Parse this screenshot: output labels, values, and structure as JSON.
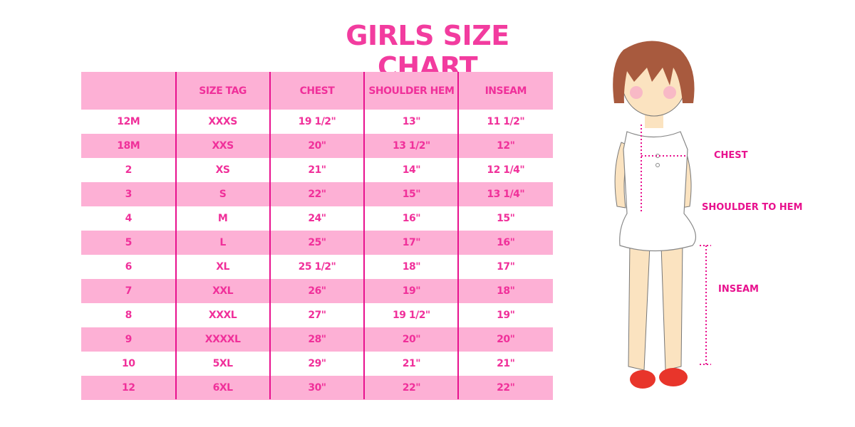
{
  "title": "GIRLS SIZE CHART",
  "table": {
    "headers": [
      "",
      "SIZE TAG",
      "CHEST",
      "SHOULDER HEM",
      "INSEAM"
    ],
    "rows": [
      [
        "12M",
        "XXXS",
        "19 1/2\"",
        "13\"",
        "11 1/2\""
      ],
      [
        "18M",
        "XXS",
        "20\"",
        "13 1/2\"",
        "12\""
      ],
      [
        "2",
        "XS",
        "21\"",
        "14\"",
        "12 1/4\""
      ],
      [
        "3",
        "S",
        "22\"",
        "15\"",
        "13 1/4\""
      ],
      [
        "4",
        "M",
        "24\"",
        "16\"",
        "15\""
      ],
      [
        "5",
        "L",
        "25\"",
        "17\"",
        "16\""
      ],
      [
        "6",
        "XL",
        "25 1/2\"",
        "18\"",
        "17\""
      ],
      [
        "7",
        "XXL",
        "26\"",
        "19\"",
        "18\""
      ],
      [
        "8",
        "XXXL",
        "27\"",
        "19 1/2\"",
        "19\""
      ],
      [
        "9",
        "XXXXL",
        "28\"",
        "20\"",
        "20\""
      ],
      [
        "10",
        "5XL",
        "29\"",
        "21\"",
        "21\""
      ],
      [
        "12",
        "6XL",
        "30\"",
        "22\"",
        "22\""
      ]
    ]
  },
  "illustration": {
    "labels": {
      "chest": "CHEST",
      "shoulder_to_hem": "SHOULDER TO HEM",
      "inseam": "INSEAM"
    }
  },
  "colors": {
    "accent": "#e8118e",
    "title": "#f23c9f",
    "row_pink": "#fdb0d5"
  }
}
